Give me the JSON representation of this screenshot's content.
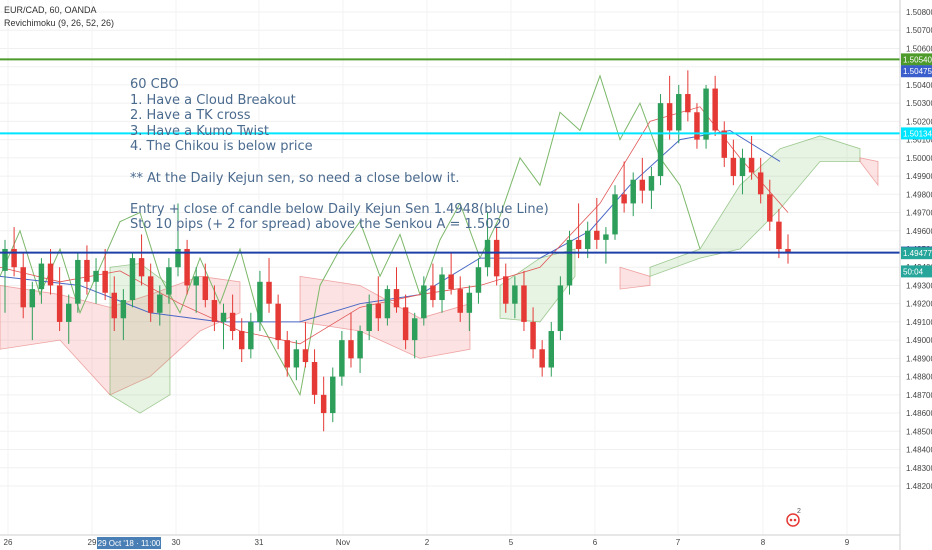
{
  "header": {
    "symbol": "EUR/CAD, 60, OANDA",
    "indicator": "Revichimoku (9, 26, 52, 26)"
  },
  "note_lines": [
    "60 CBO",
    "1. Have a Cloud Breakout",
    "2. Have a TK cross",
    "3. Have a Kumo Twist",
    "4. The Chikou is below price",
    "",
    "** At the Daily Kejun sen, so need a close below it.",
    "",
    "Entry + close of candle below Daily Kejun Sen 1.4948(blue Line)",
    "Sto 10 pips (+ 2 for spread) above the Senkou A = 1.5020"
  ],
  "chart_data": {
    "type": "candlestick",
    "symbol": "EUR/CAD",
    "timeframe": "60",
    "source": "OANDA",
    "y_axis": {
      "ticks": [
        "1.50800",
        "1.50700",
        "1.50600",
        "1.50500",
        "1.50400",
        "1.50300",
        "1.50200",
        "1.50100",
        "1.50000",
        "1.49900",
        "1.49800",
        "1.49700",
        "1.49600",
        "1.49500",
        "1.49400",
        "1.49300",
        "1.49200",
        "1.49100",
        "1.49000",
        "1.48900",
        "1.48800",
        "1.48700",
        "1.48600",
        "1.48500",
        "1.48400",
        "1.48300",
        "1.48200"
      ],
      "range": [
        1.4815,
        1.5085
      ]
    },
    "x_axis": {
      "labels": [
        "26",
        "29",
        "30",
        "31",
        "Nov",
        "2",
        "5",
        "6",
        "7",
        "8",
        "9"
      ],
      "crosshair_label": "29 Oct '18 · 11:00"
    },
    "horizontal_lines": [
      {
        "name": "green-level",
        "value": 1.5054,
        "color": "#4c9a2a",
        "label": "1.50540"
      },
      {
        "name": "cyan-level",
        "value": 1.50134,
        "color": "#00e5ff",
        "label": "1.50134"
      },
      {
        "name": "blue-level",
        "value": 1.4948,
        "color": "#1e3fa8",
        "label": "1.49480"
      }
    ],
    "price_tags": [
      {
        "label": "1.50475",
        "value": 1.50475,
        "color": "#3a5fcd"
      },
      {
        "label": "1.49477",
        "value": 1.49477,
        "color": "#26a69a"
      },
      {
        "label": "50:04",
        "value": 1.49377,
        "color": "#26a69a"
      }
    ],
    "candles_approx": [
      [
        1.4938,
        1.4955,
        1.4915,
        1.495
      ],
      [
        1.495,
        1.4962,
        1.4935,
        1.494
      ],
      [
        1.494,
        1.4948,
        1.4912,
        1.4918
      ],
      [
        1.4918,
        1.4932,
        1.49,
        1.4928
      ],
      [
        1.4928,
        1.4945,
        1.492,
        1.4942
      ],
      [
        1.4942,
        1.495,
        1.4925,
        1.493
      ],
      [
        1.493,
        1.494,
        1.4905,
        1.491
      ],
      [
        1.491,
        1.4925,
        1.4898,
        1.492
      ],
      [
        1.492,
        1.4948,
        1.4915,
        1.4944
      ],
      [
        1.4944,
        1.4952,
        1.4925,
        1.4932
      ],
      [
        1.4932,
        1.4945,
        1.492,
        1.4938
      ],
      [
        1.4938,
        1.495,
        1.4922,
        1.4926
      ],
      [
        1.4926,
        1.4935,
        1.4905,
        1.4912
      ],
      [
        1.4912,
        1.4928,
        1.49,
        1.4922
      ],
      [
        1.4922,
        1.4948,
        1.4918,
        1.4945
      ],
      [
        1.4945,
        1.4958,
        1.493,
        1.4935
      ],
      [
        1.4935,
        1.4942,
        1.491,
        1.4915
      ],
      [
        1.4915,
        1.493,
        1.4908,
        1.4925
      ],
      [
        1.4925,
        1.4945,
        1.492,
        1.494
      ],
      [
        1.494,
        1.4975,
        1.4935,
        1.495
      ],
      [
        1.495,
        1.4955,
        1.4925,
        1.493
      ],
      [
        1.493,
        1.494,
        1.4915,
        1.4935
      ],
      [
        1.4935,
        1.4942,
        1.4918,
        1.4922
      ],
      [
        1.4922,
        1.493,
        1.4905,
        1.491
      ],
      [
        1.491,
        1.492,
        1.4895,
        1.4915
      ],
      [
        1.4915,
        1.4925,
        1.49,
        1.4905
      ],
      [
        1.4905,
        1.4912,
        1.4888,
        1.4895
      ],
      [
        1.4895,
        1.4915,
        1.489,
        1.491
      ],
      [
        1.491,
        1.4938,
        1.4905,
        1.4932
      ],
      [
        1.4932,
        1.4945,
        1.4915,
        1.492
      ],
      [
        1.492,
        1.4925,
        1.4895,
        1.49
      ],
      [
        1.49,
        1.4905,
        1.488,
        1.4885
      ],
      [
        1.4885,
        1.49,
        1.4878,
        1.4895
      ],
      [
        1.4895,
        1.491,
        1.4885,
        1.4888
      ],
      [
        1.4888,
        1.4895,
        1.4865,
        1.487
      ],
      [
        1.487,
        1.488,
        1.485,
        1.486
      ],
      [
        1.486,
        1.4885,
        1.4855,
        1.488
      ],
      [
        1.488,
        1.4905,
        1.4875,
        1.49
      ],
      [
        1.49,
        1.4915,
        1.4885,
        1.489
      ],
      [
        1.489,
        1.4908,
        1.4882,
        1.4905
      ],
      [
        1.4905,
        1.4925,
        1.49,
        1.492
      ],
      [
        1.492,
        1.4935,
        1.4905,
        1.4912
      ],
      [
        1.4912,
        1.493,
        1.4908,
        1.4928
      ],
      [
        1.4928,
        1.494,
        1.4915,
        1.4918
      ],
      [
        1.4918,
        1.4925,
        1.4895,
        1.49
      ],
      [
        1.49,
        1.4915,
        1.489,
        1.4912
      ],
      [
        1.4912,
        1.4935,
        1.4908,
        1.493
      ],
      [
        1.493,
        1.4942,
        1.4918,
        1.4922
      ],
      [
        1.4922,
        1.494,
        1.4915,
        1.4936
      ],
      [
        1.4936,
        1.4948,
        1.4925,
        1.4928
      ],
      [
        1.4928,
        1.4935,
        1.491,
        1.4915
      ],
      [
        1.4915,
        1.493,
        1.4905,
        1.4926
      ],
      [
        1.4926,
        1.4945,
        1.492,
        1.494
      ],
      [
        1.494,
        1.497,
        1.4935,
        1.4955
      ],
      [
        1.4955,
        1.4962,
        1.493,
        1.4935
      ],
      [
        1.4935,
        1.4942,
        1.4915,
        1.492
      ],
      [
        1.492,
        1.4935,
        1.4912,
        1.493
      ],
      [
        1.493,
        1.4938,
        1.4905,
        1.491
      ],
      [
        1.491,
        1.4918,
        1.489,
        1.4895
      ],
      [
        1.4895,
        1.49,
        1.488,
        1.4885
      ],
      [
        1.4885,
        1.491,
        1.488,
        1.4905
      ],
      [
        1.4905,
        1.4935,
        1.49,
        1.493
      ],
      [
        1.493,
        1.496,
        1.4925,
        1.4955
      ],
      [
        1.4955,
        1.4975,
        1.4945,
        1.495
      ],
      [
        1.495,
        1.4965,
        1.4945,
        1.496
      ],
      [
        1.496,
        1.4978,
        1.495,
        1.4955
      ],
      [
        1.4955,
        1.4962,
        1.4942,
        1.4958
      ],
      [
        1.4958,
        1.4985,
        1.4955,
        1.498
      ],
      [
        1.498,
        1.4998,
        1.497,
        1.4975
      ],
      [
        1.4975,
        1.4992,
        1.4968,
        1.4988
      ],
      [
        1.4988,
        1.5,
        1.4975,
        1.4982
      ],
      [
        1.4982,
        1.4995,
        1.4972,
        1.499
      ],
      [
        1.499,
        1.5035,
        1.4985,
        1.503
      ],
      [
        1.503,
        1.5045,
        1.501,
        1.5015
      ],
      [
        1.5015,
        1.504,
        1.5008,
        1.5035
      ],
      [
        1.5035,
        1.5048,
        1.502,
        1.5025
      ],
      [
        1.5025,
        1.503,
        1.5005,
        1.501
      ],
      [
        1.501,
        1.504,
        1.5005,
        1.5038
      ],
      [
        1.5038,
        1.5045,
        1.5012,
        1.5015
      ],
      [
        1.5015,
        1.502,
        1.4995,
        1.5
      ],
      [
        1.5,
        1.501,
        1.4985,
        1.499
      ],
      [
        1.499,
        1.5005,
        1.498,
        1.5
      ],
      [
        1.5,
        1.5012,
        1.4988,
        1.4992
      ],
      [
        1.4992,
        1.5,
        1.4975,
        1.498
      ],
      [
        1.498,
        1.4988,
        1.496,
        1.4965
      ],
      [
        1.4965,
        1.4972,
        1.4945,
        1.495
      ],
      [
        1.495,
        1.4958,
        1.4942,
        1.4948
      ]
    ]
  }
}
